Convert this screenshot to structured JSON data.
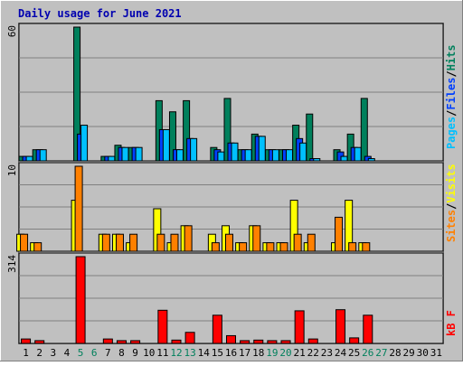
{
  "title": "Daily usage for June 2021",
  "colors": {
    "background": "#c0c0c0",
    "title": "#0000b0",
    "hits": "#00805c",
    "files": "#0040ff",
    "pages": "#00c0ff",
    "visits": "#ffff00",
    "sites": "#ff8000",
    "kbytes": "#ff0000",
    "weekend_label": "#00805c"
  },
  "legend": {
    "hits": "Hits",
    "files": "Files",
    "pages": "Pages",
    "visits": "Visits",
    "sites": "Sites",
    "kbytes": "kB F",
    "sep": "/"
  },
  "chart_data": {
    "type": "bar",
    "title": "Daily usage for June 2021",
    "categories": [
      "1",
      "2",
      "3",
      "4",
      "5",
      "6",
      "7",
      "8",
      "9",
      "10",
      "11",
      "12",
      "13",
      "14",
      "15",
      "16",
      "17",
      "18",
      "19",
      "20",
      "21",
      "22",
      "23",
      "24",
      "25",
      "26",
      "27",
      "28",
      "29",
      "30",
      "31"
    ],
    "weekend_days": [
      "5",
      "6",
      "12",
      "13",
      "19",
      "20",
      "26",
      "27"
    ],
    "panels": [
      {
        "name": "hits-files-pages",
        "max_label": "60",
        "ylim": [
          0,
          60
        ],
        "series": [
          {
            "name": "Hits",
            "values": [
              2,
              5,
              0,
              0,
              60,
              0,
              2,
              7,
              6,
              0,
              27,
              22,
              27,
              0,
              6,
              28,
              5,
              12,
              5,
              5,
              16,
              21,
              0,
              5,
              12,
              28,
              0,
              0,
              0,
              0,
              0
            ]
          },
          {
            "name": "Files",
            "values": [
              2,
              5,
              0,
              0,
              12,
              0,
              2,
              6,
              6,
              0,
              14,
              5,
              10,
              0,
              5,
              8,
              5,
              11,
              5,
              5,
              10,
              1,
              0,
              4,
              6,
              2,
              0,
              0,
              0,
              0,
              0
            ]
          },
          {
            "name": "Pages",
            "values": [
              2,
              5,
              0,
              0,
              16,
              0,
              2,
              6,
              6,
              0,
              14,
              5,
              10,
              0,
              4,
              8,
              5,
              11,
              5,
              5,
              8,
              1,
              0,
              2,
              6,
              1,
              0,
              0,
              0,
              0,
              0
            ]
          }
        ]
      },
      {
        "name": "visits-sites",
        "max_label": "10",
        "ylim": [
          0,
          10
        ],
        "series": [
          {
            "name": "Visits",
            "values": [
              2,
              1,
              0,
              0,
              6,
              0,
              2,
              2,
              1,
              0,
              5,
              1,
              3,
              0,
              2,
              3,
              1,
              3,
              1,
              1,
              6,
              1,
              0,
              1,
              6,
              1,
              0,
              0,
              0,
              0,
              0
            ]
          },
          {
            "name": "Sites",
            "values": [
              2,
              1,
              0,
              0,
              10,
              0,
              2,
              2,
              2,
              0,
              2,
              2,
              3,
              0,
              1,
              2,
              1,
              3,
              1,
              1,
              2,
              2,
              0,
              4,
              1,
              1,
              0,
              0,
              0,
              0,
              0
            ]
          }
        ]
      },
      {
        "name": "kbytes",
        "max_label": "314",
        "ylim": [
          0,
          314
        ],
        "series": [
          {
            "name": "kB F",
            "values": [
              16,
              10,
              0,
              0,
              314,
              0,
              16,
              10,
              10,
              0,
              120,
              12,
              40,
              0,
              102,
              28,
              10,
              12,
              10,
              10,
              118,
              16,
              0,
              122,
              20,
              102,
              0,
              0,
              0,
              0,
              0
            ]
          }
        ]
      }
    ]
  }
}
